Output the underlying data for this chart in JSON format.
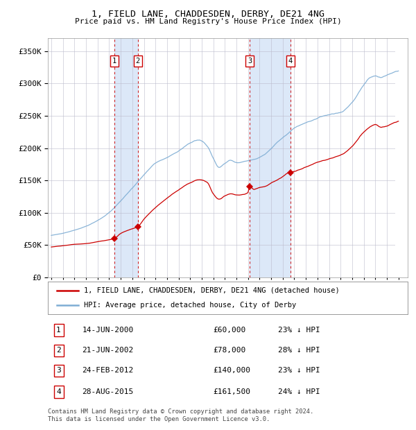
{
  "title1": "1, FIELD LANE, CHADDESDEN, DERBY, DE21 4NG",
  "title2": "Price paid vs. HM Land Registry's House Price Index (HPI)",
  "ytick_values": [
    0,
    50000,
    100000,
    150000,
    200000,
    250000,
    300000,
    350000
  ],
  "ylim": [
    0,
    370000
  ],
  "xlim_start": 1994.7,
  "xlim_end": 2025.8,
  "transactions": [
    {
      "num": 1,
      "date": "14-JUN-2000",
      "year": 2000.45,
      "price": 60000,
      "pct": "23%",
      "dir": "↓"
    },
    {
      "num": 2,
      "date": "21-JUN-2002",
      "year": 2002.47,
      "price": 78000,
      "pct": "28%",
      "dir": "↓"
    },
    {
      "num": 3,
      "date": "24-FEB-2012",
      "year": 2012.15,
      "price": 140000,
      "pct": "23%",
      "dir": "↓"
    },
    {
      "num": 4,
      "date": "28-AUG-2015",
      "year": 2015.65,
      "price": 161500,
      "pct": "24%",
      "dir": "↓"
    }
  ],
  "legend_line1": "1, FIELD LANE, CHADDESDEN, DERBY, DE21 4NG (detached house)",
  "legend_line2": "HPI: Average price, detached house, City of Derby",
  "footer1": "Contains HM Land Registry data © Crown copyright and database right 2024.",
  "footer2": "This data is licensed under the Open Government Licence v3.0.",
  "line_color_red": "#cc0000",
  "line_color_blue": "#7eadd4",
  "marker_color": "#cc0000",
  "grid_color": "#bbbbcc",
  "dashed_color": "#cc0000",
  "box_color": "#cc0000",
  "shade_color": "#dce8f8"
}
